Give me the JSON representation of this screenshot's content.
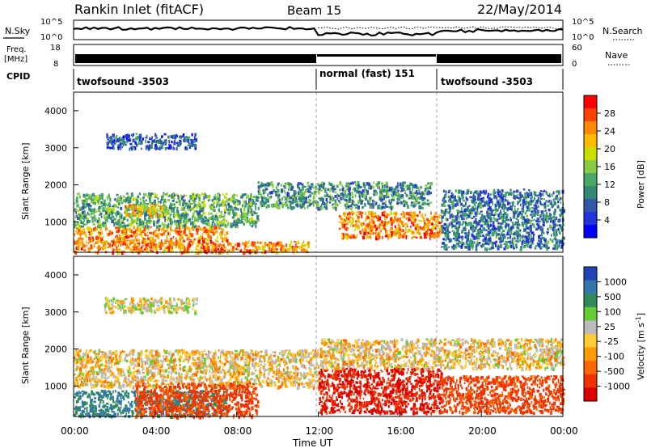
{
  "header": {
    "title": "Rankin Inlet (fitACF)",
    "beam": "Beam 15",
    "date": "22/May/2014"
  },
  "strips": {
    "nsky_label": "N.Sky",
    "nsearch_label": "N.Search",
    "nsky_ticks": [
      "10^5",
      "10^0"
    ],
    "nsearch_ticks": [
      "10^5",
      "10^0"
    ],
    "freq_label_1": "Freq.",
    "freq_label_2": "[MHz]",
    "freq_ticks": [
      "18",
      "8"
    ],
    "nave_label": "Nave",
    "nave_ticks": [
      "60",
      "0"
    ],
    "cpid_label": "CPID",
    "cpid_segments": [
      {
        "name": "twofsound",
        "id": "-3503",
        "start_hour": 0,
        "end_hour": 12
      },
      {
        "name": "normal (fast)",
        "id": "151",
        "start_hour": 12,
        "end_hour": 18
      },
      {
        "name": "twofsound",
        "id": "-3503",
        "start_hour": 18,
        "end_hour": 24
      }
    ]
  },
  "colorbars": {
    "power": {
      "label": "Power [dB]",
      "ticks": [
        "28",
        "24",
        "20",
        "16",
        "12",
        "8",
        "4"
      ],
      "colors": [
        "#ff0000",
        "#ff4400",
        "#ff8800",
        "#ffbb00",
        "#ccdd00",
        "#88cc44",
        "#44aa66",
        "#338877",
        "#3355aa",
        "#2233dd",
        "#0000ff"
      ]
    },
    "velocity": {
      "label": "Velocity [m s^-1]",
      "ticks": [
        "1000",
        "500",
        "100",
        "25",
        "-25",
        "-100",
        "-500",
        "-1000"
      ],
      "colors": [
        "#2244bb",
        "#3377aa",
        "#2e8b57",
        "#66cc33",
        "#bbbbbb",
        "#ffcc33",
        "#ff9900",
        "#ff6600",
        "#ee3300",
        "#dd0000"
      ]
    }
  },
  "axes": {
    "ylabel": "Slant Range [km]",
    "xlabel": "Time UT",
    "y_ticks": [
      "4000",
      "3000",
      "2000",
      "1000"
    ],
    "x_ticks": [
      "00:00",
      "04:00",
      "08:00",
      "12:00",
      "16:00",
      "20:00",
      "00:00"
    ]
  },
  "chart_data": [
    {
      "type": "heatmap",
      "title": "",
      "quantity": "Power [dB]",
      "xlabel": "",
      "ylabel": "Slant Range [km]",
      "xlim_hours": [
        0,
        24
      ],
      "ylim_km": [
        180,
        4500
      ],
      "colorbar_range_db": [
        0,
        30
      ],
      "regions": [
        {
          "t_start": 0.0,
          "t_end": 7.5,
          "r_min": 200,
          "r_max": 900,
          "level_db": 24
        },
        {
          "t_start": 0.0,
          "t_end": 9.0,
          "r_min": 900,
          "r_max": 1800,
          "level_db": 12
        },
        {
          "t_start": 2.5,
          "t_end": 4.5,
          "r_min": 1200,
          "r_max": 1500,
          "level_db": 20
        },
        {
          "t_start": 7.5,
          "t_end": 11.5,
          "r_min": 200,
          "r_max": 500,
          "level_db": 24
        },
        {
          "t_start": 9.0,
          "t_end": 17.5,
          "r_min": 1400,
          "r_max": 2100,
          "level_db": 10
        },
        {
          "t_start": 13.0,
          "t_end": 18.0,
          "r_min": 600,
          "r_max": 1300,
          "level_db": 24
        },
        {
          "t_start": 18.0,
          "t_end": 24.0,
          "r_min": 300,
          "r_max": 1900,
          "level_db": 8
        },
        {
          "t_start": 1.5,
          "t_end": 6.0,
          "r_min": 3000,
          "r_max": 3400,
          "level_db": 6
        }
      ]
    },
    {
      "type": "heatmap",
      "title": "",
      "quantity": "Velocity [m s^-1]",
      "xlabel": "Time UT",
      "ylabel": "Slant Range [km]",
      "xlim_hours": [
        0,
        24
      ],
      "ylim_km": [
        180,
        4500
      ],
      "regions": [
        {
          "t_start": 0.0,
          "t_end": 7.5,
          "r_min": 200,
          "r_max": 900,
          "level_ms": 500
        },
        {
          "t_start": 0.0,
          "t_end": 12.0,
          "r_min": 1000,
          "r_max": 2000,
          "level_ms": 0
        },
        {
          "t_start": 3.0,
          "t_end": 9.0,
          "r_min": 200,
          "r_max": 1100,
          "level_ms": -300
        },
        {
          "t_start": 12.0,
          "t_end": 18.0,
          "r_min": 300,
          "r_max": 1500,
          "level_ms": -500
        },
        {
          "t_start": 18.0,
          "t_end": 24.0,
          "r_min": 300,
          "r_max": 1300,
          "level_ms": -300
        },
        {
          "t_start": 12.0,
          "t_end": 24.0,
          "r_min": 1500,
          "r_max": 2300,
          "level_ms": 0
        },
        {
          "t_start": 1.5,
          "t_end": 6.0,
          "r_min": 3000,
          "r_max": 3400,
          "level_ms": 50
        }
      ]
    }
  ]
}
